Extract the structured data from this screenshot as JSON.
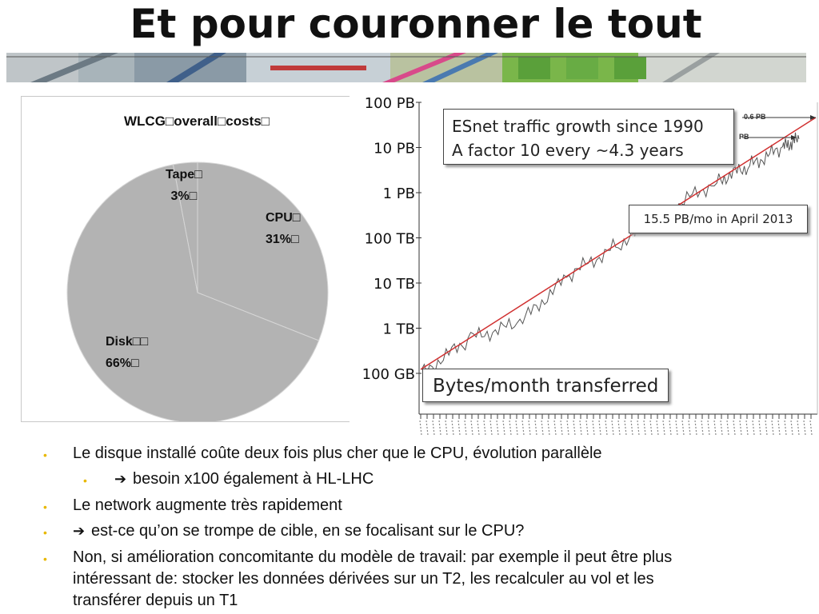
{
  "slide": {
    "title": "Et pour couronner le tout"
  },
  "pie": {
    "title": "WLCG□overall□costs□",
    "slices": [
      {
        "label": "CPU□",
        "pct_label": "31%□",
        "value": 31
      },
      {
        "label": "Disk□□",
        "pct_label": "66%□",
        "value": 66
      },
      {
        "label": "Tape□",
        "pct_label": "3%□",
        "value": 3
      }
    ],
    "fill_color": "#b3b3b3",
    "line_color": "#d6d6d6"
  },
  "network": {
    "callout_title_line1": "ESnet traffic growth since 1990",
    "callout_title_line2": "A factor 10 every ~4.3 years",
    "callout_april": "15.5 PB/mo in April 2013",
    "callout_bytes": "Bytes/month transferred",
    "arrow_label_top": "0.6 PB",
    "arrow_label_mid": "PB",
    "y_tick_labels": [
      "100 PB",
      "10 PB",
      "1 PB",
      "100 TB",
      "10 TB",
      "1 TB",
      "100 GB"
    ],
    "trend_color": "#d03030",
    "data_color": "#555555"
  },
  "chart_data": [
    {
      "type": "pie",
      "title": "WLCG□overall□costs□",
      "categories": [
        "CPU",
        "Disk",
        "Tape"
      ],
      "values": [
        31,
        66,
        3
      ]
    },
    {
      "type": "line",
      "title": "ESnet traffic growth since 1990",
      "subtitle": "A factor 10 every ~4.3 years",
      "ylabel": "Bytes/month transferred",
      "y_scale": "log",
      "y_ticks": [
        "100 GB",
        "1 TB",
        "10 TB",
        "100 TB",
        "1 PB",
        "10 PB",
        "100 PB"
      ],
      "x_range": [
        1990,
        2013
      ],
      "annotations": [
        "15.5 PB/mo in April 2013"
      ],
      "series": [
        {
          "x": [
            1990,
            1993,
            1996,
            1999,
            2002,
            2005,
            2008,
            2010,
            2012,
            2013
          ],
          "y_bytes": [
            100000000000.0,
            600000000000.0,
            1300000000000.0,
            15000000000000.0,
            70000000000000.0,
            400000000000000.0,
            1800000000000000.0,
            4000000000000000.0,
            1e+16,
            1.55e+16
          ]
        }
      ],
      "grid": false
    }
  ],
  "bullets": [
    {
      "text": "Le disque installé coûte deux fois plus cher que le CPU, évolution parallèle"
    },
    {
      "text": "besoin x100 également à HL-LHC"
    },
    {
      "text": "Le network augmente très rapidement"
    },
    {
      "text": "est-ce qu’on se trompe de cible, en se focalisant sur le CPU?"
    },
    {
      "text": "Non, si amélioration concomitante du modèle de travail: par exemple il peut être plus"
    },
    {
      "text": "intéressant de: stocker les données dérivées sur un T2, les recalculer au vol et les"
    },
    {
      "text": "transférer depuis un T1"
    }
  ]
}
